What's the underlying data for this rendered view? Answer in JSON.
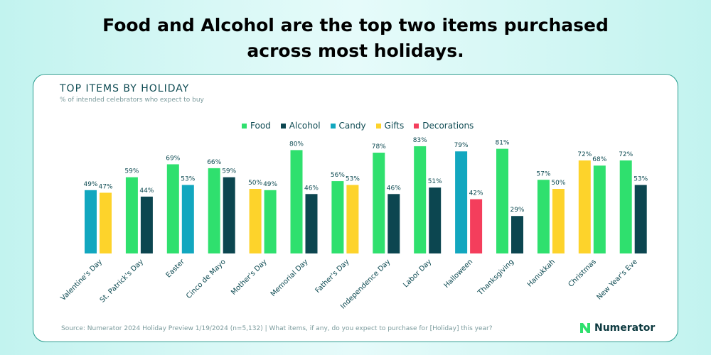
{
  "headline": [
    "Food and Alcohol are the top two items purchased",
    "across most holidays."
  ],
  "brand": "Numerator",
  "source": "Source: Numerator 2024 Holiday Preview 1/19/2024 (n=5,132) | What items, if any, do you expect to purchase for [Holiday] this year?",
  "chart_data": {
    "type": "bar",
    "title": "TOP ITEMS BY HOLIDAY",
    "subtitle": "% of intended celebrators who expect to buy",
    "legend_position": "top-center",
    "grid": false,
    "ylim": [
      0,
      100
    ],
    "colors": {
      "Food": "#2fe06e",
      "Alcohol": "#0c4650",
      "Candy": "#12a7bf",
      "Gifts": "#fdd32b",
      "Decorations": "#f43e5c"
    },
    "legend": [
      "Food",
      "Alcohol",
      "Candy",
      "Gifts",
      "Decorations"
    ],
    "categories": [
      "Valentine's Day",
      "St. Patrick's Day",
      "Easter",
      "Cinco de Mayo",
      "Mother's Day",
      "Memorial Day",
      "Father's Day",
      "Independence Day",
      "Labor Day",
      "Halloween",
      "Thanksgiving",
      "Hanukkah",
      "Christmas",
      "New Year's Eve"
    ],
    "groups": [
      [
        {
          "series": "Candy",
          "value": 49
        },
        {
          "series": "Gifts",
          "value": 47
        }
      ],
      [
        {
          "series": "Food",
          "value": 59
        },
        {
          "series": "Alcohol",
          "value": 44
        }
      ],
      [
        {
          "series": "Food",
          "value": 69
        },
        {
          "series": "Candy",
          "value": 53
        }
      ],
      [
        {
          "series": "Food",
          "value": 66
        },
        {
          "series": "Alcohol",
          "value": 59
        }
      ],
      [
        {
          "series": "Gifts",
          "value": 50
        },
        {
          "series": "Food",
          "value": 49
        }
      ],
      [
        {
          "series": "Food",
          "value": 80
        },
        {
          "series": "Alcohol",
          "value": 46
        }
      ],
      [
        {
          "series": "Food",
          "value": 56
        },
        {
          "series": "Gifts",
          "value": 53
        }
      ],
      [
        {
          "series": "Food",
          "value": 78
        },
        {
          "series": "Alcohol",
          "value": 46
        }
      ],
      [
        {
          "series": "Food",
          "value": 83
        },
        {
          "series": "Alcohol",
          "value": 51
        }
      ],
      [
        {
          "series": "Candy",
          "value": 79
        },
        {
          "series": "Decorations",
          "value": 42
        }
      ],
      [
        {
          "series": "Food",
          "value": 81
        },
        {
          "series": "Alcohol",
          "value": 29
        }
      ],
      [
        {
          "series": "Food",
          "value": 57
        },
        {
          "series": "Gifts",
          "value": 50
        }
      ],
      [
        {
          "series": "Gifts",
          "value": 72
        },
        {
          "series": "Food",
          "value": 68
        }
      ],
      [
        {
          "series": "Food",
          "value": 72
        },
        {
          "series": "Alcohol",
          "value": 53
        }
      ]
    ]
  }
}
